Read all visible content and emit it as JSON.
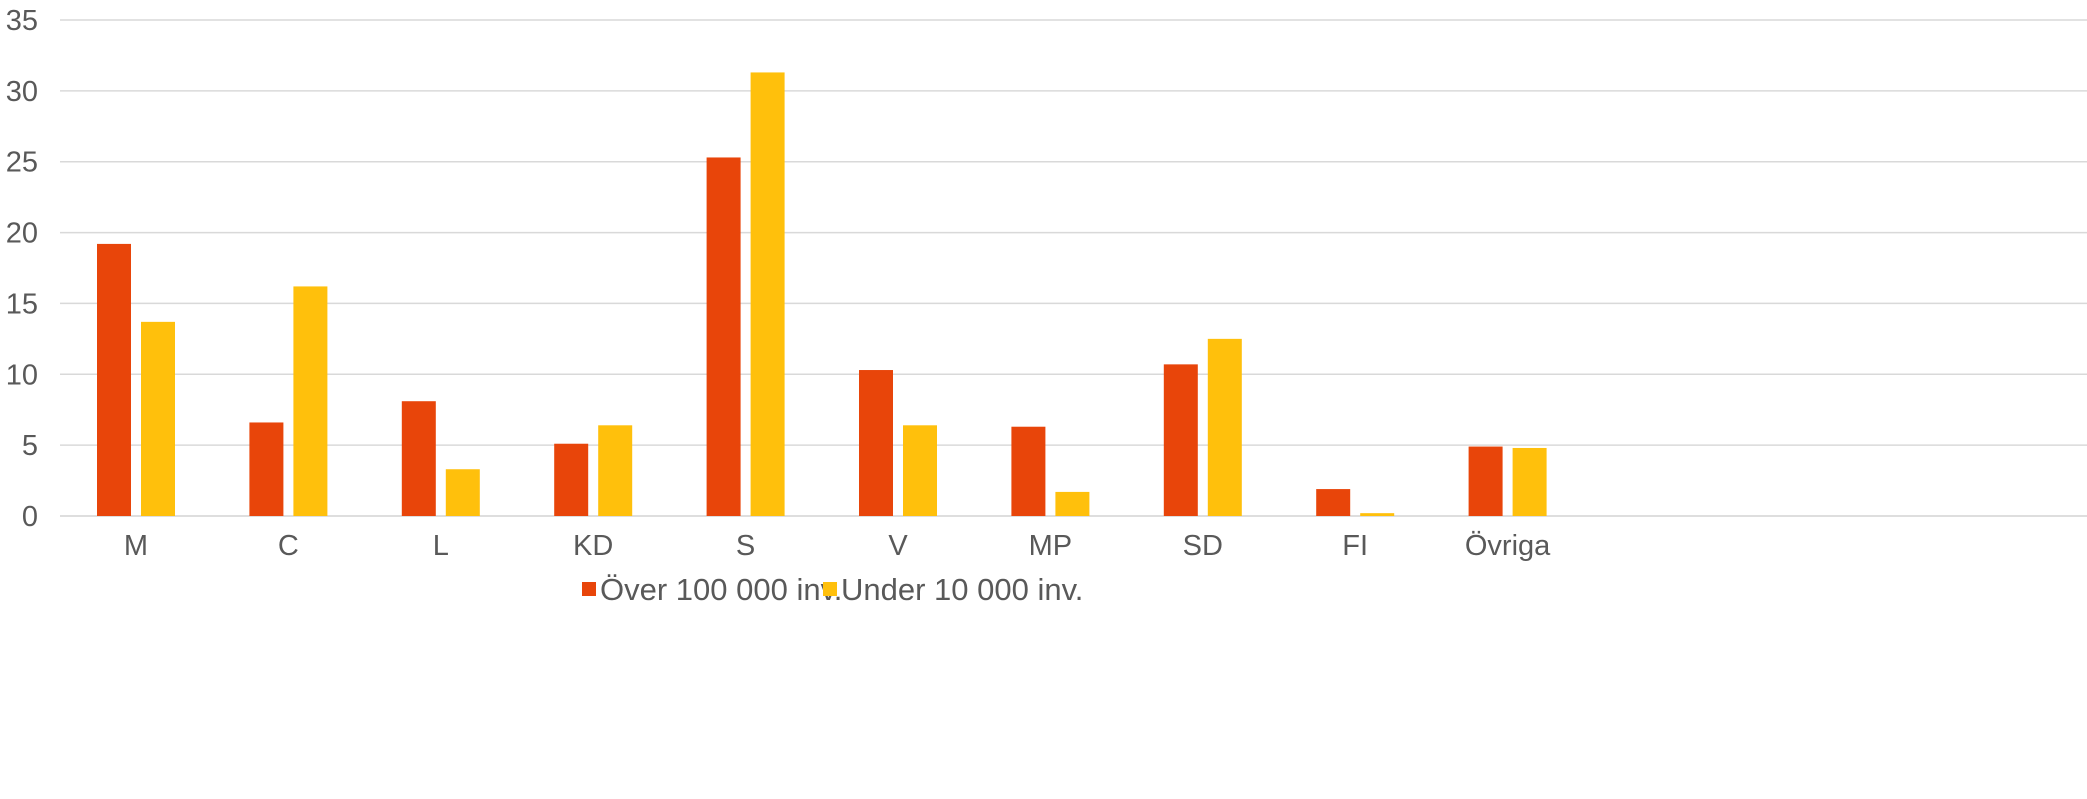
{
  "chart_data": {
    "type": "bar",
    "title": "",
    "xlabel": "",
    "ylabel": "",
    "categories": [
      "M",
      "C",
      "L",
      "KD",
      "S",
      "V",
      "MP",
      "SD",
      "FI",
      "Övriga"
    ],
    "series": [
      {
        "name": "Över 100 000 inv.",
        "color": "#E8450A",
        "values": [
          19.2,
          6.6,
          8.1,
          5.1,
          25.3,
          10.3,
          6.3,
          10.7,
          1.9,
          4.9
        ]
      },
      {
        "name": "Under 10 000 inv.",
        "color": "#FFC00C",
        "values": [
          13.7,
          16.2,
          3.3,
          6.4,
          31.3,
          6.4,
          1.7,
          12.5,
          0.2,
          4.8
        ]
      }
    ],
    "ylim": [
      0,
      35
    ],
    "yticks": [
      0,
      5,
      10,
      15,
      20,
      25,
      30,
      35
    ],
    "grid": true,
    "legend_position": "bottom",
    "gridline_color": "#D9D9D9",
    "text_color": "#595959"
  }
}
